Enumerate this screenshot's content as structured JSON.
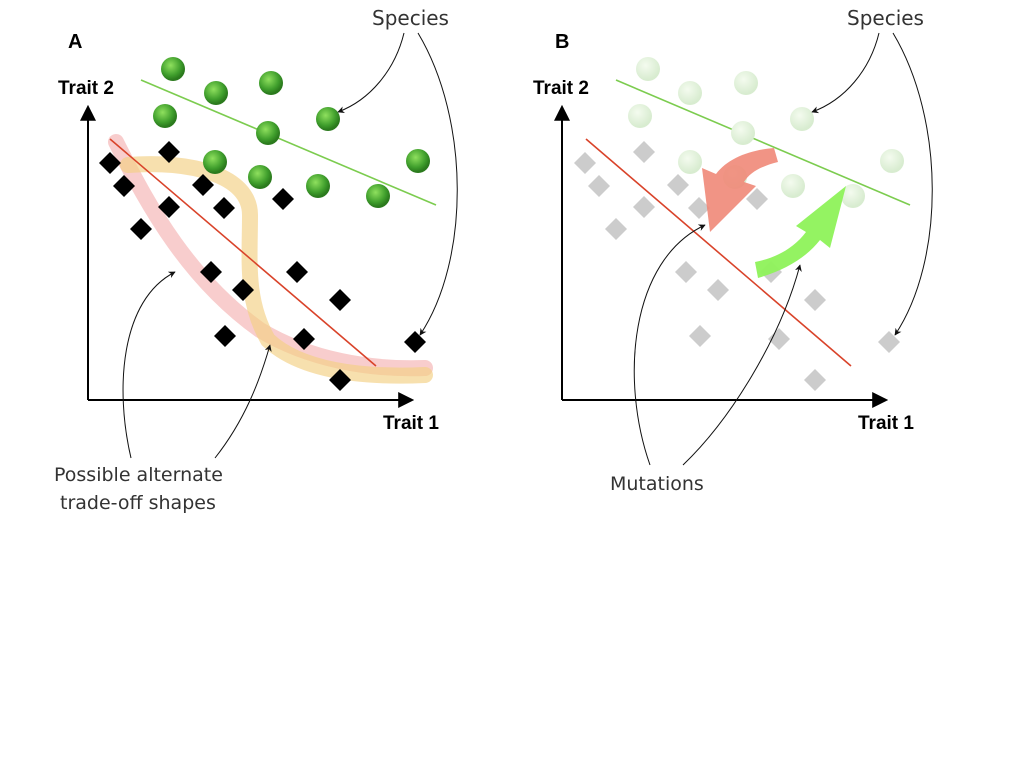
{
  "panel_a": {
    "label": "A",
    "y_axis_label": "Trait 2",
    "x_axis_label": "Trait 1",
    "species_label": "Species",
    "alternate_label_line1": "Possible alternate",
    "alternate_label_line2": "trade-off shapes"
  },
  "panel_b": {
    "label": "B",
    "y_axis_label": "Trait 2",
    "x_axis_label": "Trait 1",
    "species_label": "Species",
    "mutations_label": "Mutations"
  },
  "colors": {
    "green_species": "#3f9e2c",
    "black_species": "#000000",
    "trade_off_green_line": "#7ccc4f",
    "trade_off_red_line": "#d9432a",
    "alt_shape_pink": "#f5b8b8",
    "alt_shape_orange": "#f3cf82",
    "mutation_red_arrow": "#f08878",
    "mutation_green_arrow": "#8ef25a",
    "faded_gray": "#cccccc"
  }
}
